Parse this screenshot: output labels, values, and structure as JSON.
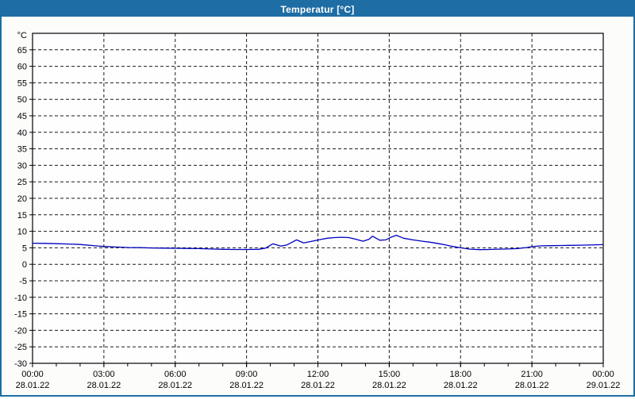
{
  "window": {
    "title": "Temperatur [°C]"
  },
  "chart_data": {
    "type": "line",
    "title": "Temperatur [°C]",
    "unit_label": "°C",
    "xlabel": "",
    "ylabel": "°C",
    "xlim": [
      0,
      24
    ],
    "ylim": [
      -30,
      70
    ],
    "grid": "dashed",
    "y_tick_values": [
      65,
      60,
      55,
      50,
      45,
      40,
      35,
      30,
      25,
      20,
      15,
      10,
      5,
      0,
      -5,
      -10,
      -15,
      -20,
      -25,
      -30
    ],
    "x_minor_tick_hours": 1,
    "x_ticks": [
      {
        "t": 0,
        "time": "00:00",
        "date": "28.01.22"
      },
      {
        "t": 3,
        "time": "03:00",
        "date": "28.01.22"
      },
      {
        "t": 6,
        "time": "06:00",
        "date": "28.01.22"
      },
      {
        "t": 9,
        "time": "09:00",
        "date": "28.01.22"
      },
      {
        "t": 12,
        "time": "12:00",
        "date": "28.01.22"
      },
      {
        "t": 15,
        "time": "15:00",
        "date": "28.01.22"
      },
      {
        "t": 18,
        "time": "18:00",
        "date": "28.01.22"
      },
      {
        "t": 21,
        "time": "21:00",
        "date": "28.01.22"
      },
      {
        "t": 24,
        "time": "00:00",
        "date": "29.01.22"
      }
    ],
    "series": [
      {
        "name": "Temperatur",
        "color": "#0000c0",
        "points": [
          [
            0,
            6.4
          ],
          [
            0.5,
            6.35
          ],
          [
            1,
            6.25
          ],
          [
            1.5,
            6.15
          ],
          [
            2,
            6.0
          ],
          [
            2.5,
            5.7
          ],
          [
            3,
            5.4
          ],
          [
            3.5,
            5.25
          ],
          [
            4,
            5.1
          ],
          [
            4.5,
            5.05
          ],
          [
            5,
            4.95
          ],
          [
            5.5,
            4.9
          ],
          [
            6,
            4.85
          ],
          [
            6.5,
            4.8
          ],
          [
            7,
            4.75
          ],
          [
            7.5,
            4.65
          ],
          [
            8,
            4.55
          ],
          [
            8.5,
            4.5
          ],
          [
            9,
            4.5
          ],
          [
            9.5,
            4.55
          ],
          [
            9.8,
            4.9
          ],
          [
            10.1,
            6.2
          ],
          [
            10.45,
            5.5
          ],
          [
            10.7,
            5.9
          ],
          [
            11.1,
            7.4
          ],
          [
            11.4,
            6.5
          ],
          [
            11.75,
            7.0
          ],
          [
            12.1,
            7.5
          ],
          [
            12.4,
            7.9
          ],
          [
            12.7,
            8.1
          ],
          [
            13.0,
            8.2
          ],
          [
            13.3,
            8.1
          ],
          [
            13.6,
            7.6
          ],
          [
            13.9,
            7.0
          ],
          [
            14.15,
            7.6
          ],
          [
            14.3,
            8.5
          ],
          [
            14.6,
            7.3
          ],
          [
            14.85,
            7.4
          ],
          [
            15.1,
            8.3
          ],
          [
            15.3,
            8.8
          ],
          [
            15.6,
            7.9
          ],
          [
            16.0,
            7.4
          ],
          [
            16.4,
            7.0
          ],
          [
            16.8,
            6.6
          ],
          [
            17.2,
            6.1
          ],
          [
            17.6,
            5.5
          ],
          [
            18.0,
            5.0
          ],
          [
            18.4,
            4.6
          ],
          [
            18.8,
            4.45
          ],
          [
            19.2,
            4.5
          ],
          [
            19.6,
            4.6
          ],
          [
            20.0,
            4.65
          ],
          [
            20.4,
            4.75
          ],
          [
            20.8,
            5.1
          ],
          [
            21.0,
            5.35
          ],
          [
            21.4,
            5.6
          ],
          [
            21.8,
            5.65
          ],
          [
            22.2,
            5.7
          ],
          [
            22.6,
            5.75
          ],
          [
            23.0,
            5.8
          ],
          [
            23.4,
            5.85
          ],
          [
            24.0,
            5.95
          ]
        ]
      }
    ],
    "colors": {
      "titlebar": "#1e6da4",
      "plot_border": "#000000",
      "grid": "#1a1a1a",
      "text": "#000000",
      "background": "#fcfdfb",
      "plot_background": "#fdfefd"
    }
  }
}
